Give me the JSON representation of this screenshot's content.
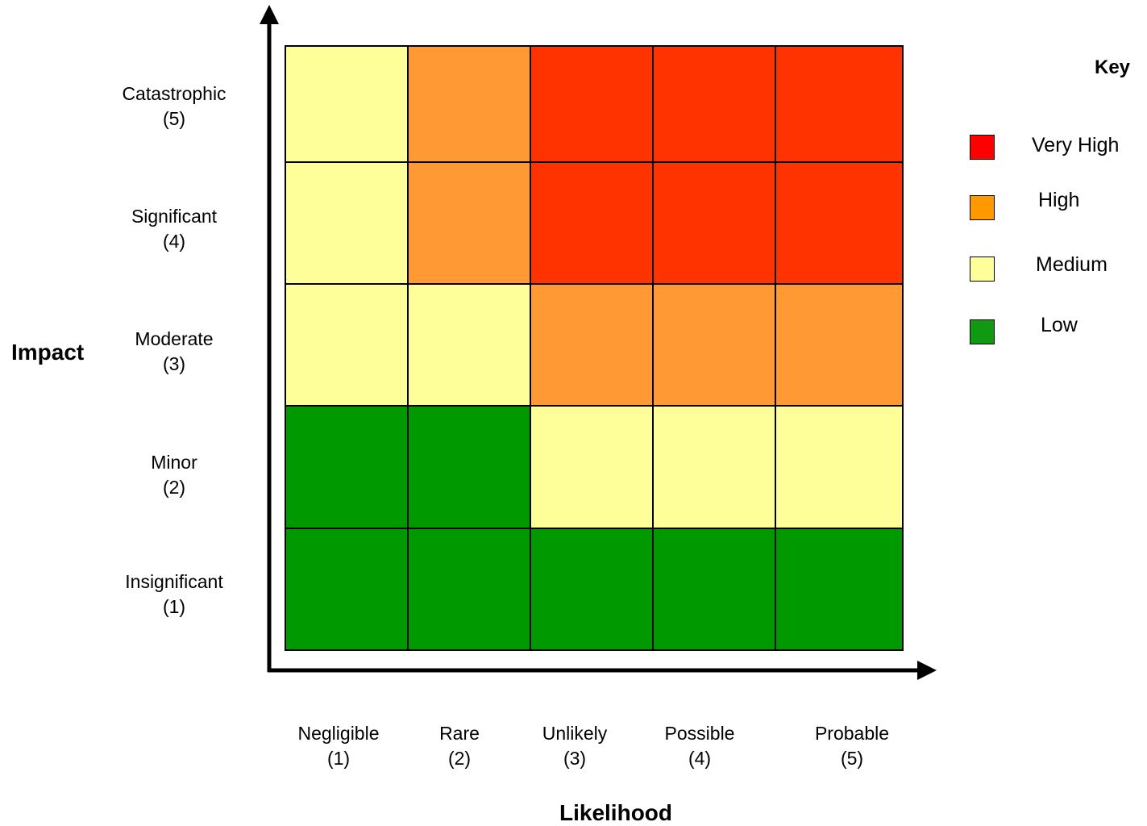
{
  "chart_data": {
    "type": "heatmap",
    "xlabel": "Likelihood",
    "ylabel": "Impact",
    "x_categories": [
      {
        "name": "Negligible",
        "score": "(1)"
      },
      {
        "name": "Rare",
        "score": "(2)"
      },
      {
        "name": "Unlikely",
        "score": "(3)"
      },
      {
        "name": "Possible",
        "score": "(4)"
      },
      {
        "name": "Probable",
        "score": "(5)"
      }
    ],
    "y_categories": [
      {
        "name": "Catastrophic",
        "score": "(5)"
      },
      {
        "name": "Significant",
        "score": "(4)"
      },
      {
        "name": "Moderate",
        "score": "(3)"
      },
      {
        "name": "Minor",
        "score": "(2)"
      },
      {
        "name": "Insignificant",
        "score": "(1)"
      }
    ],
    "cells": [
      [
        "Medium",
        "High",
        "Very High",
        "Very High",
        "Very High"
      ],
      [
        "Medium",
        "High",
        "Very High",
        "Very High",
        "Very High"
      ],
      [
        "Medium",
        "Medium",
        "High",
        "High",
        "High"
      ],
      [
        "Low",
        "Low",
        "Medium",
        "Medium",
        "Medium"
      ],
      [
        "Low",
        "Low",
        "Low",
        "Low",
        "Low"
      ]
    ],
    "cell_colors": {
      "Very High": "#ff3300",
      "High": "#ff9933",
      "Medium": "#ffff99",
      "Low": "#009900"
    },
    "legend": {
      "title": "Key",
      "placement": "right",
      "items": [
        {
          "label": "Very High",
          "color": "#ff0000"
        },
        {
          "label": "High",
          "color": "#ff9900"
        },
        {
          "label": "Medium",
          "color": "#ffff99"
        },
        {
          "label": "Low",
          "color": "#119911"
        }
      ]
    }
  }
}
